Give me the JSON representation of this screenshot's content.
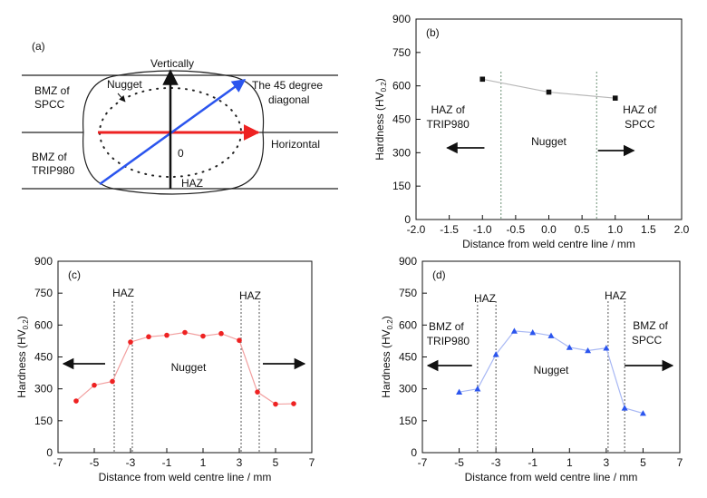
{
  "colors": {
    "red": "#ee2222",
    "blue": "#2b55ee",
    "red_line": "#f2a0a0",
    "blue_line": "#a8b8f4",
    "gray_line": "#b8b8b8",
    "dotted_green": "#6b8f75"
  },
  "schematic": {
    "panel_label": "(a)",
    "vertically": "Vertically",
    "nugget": "Nugget",
    "bmz_spcc_1": "BMZ of",
    "bmz_spcc_2": "SPCC",
    "bmz_trip_1": "BMZ of",
    "bmz_trip_2": "TRIP980",
    "diag_1": "The 45 degree",
    "diag_2": "diagonal",
    "horizontal": "Horizontal",
    "origin": "0",
    "haz": "HAZ"
  },
  "chart_data": [
    {
      "id": "b",
      "type": "scatter",
      "panel_label": "(b)",
      "xlabel": "Distance from weld centre line / mm",
      "ylabel": "Hardness (HV0.2)",
      "xlim": [
        -2.0,
        2.0
      ],
      "ylim": [
        0,
        900
      ],
      "xticks": [
        "-2.0",
        "-1.5",
        "-1.0",
        "-0.5",
        "0.0",
        "0.5",
        "1.0",
        "1.5",
        "2.0"
      ],
      "yticks": [
        "0",
        "150",
        "300",
        "450",
        "600",
        "750",
        "900"
      ],
      "series": [
        {
          "x": [
            -1.0,
            0.0,
            1.0
          ],
          "y": [
            630,
            572,
            545
          ]
        }
      ],
      "boundaries": [
        -0.72,
        0.72
      ],
      "annotations": {
        "left_1": "HAZ of",
        "left_2": "TRIP980",
        "center": "Nugget",
        "right_1": "HAZ of",
        "right_2": "SPCC"
      }
    },
    {
      "id": "c",
      "type": "line",
      "panel_label": "(c)",
      "xlabel": "Distance from weld centre line / mm",
      "ylabel": "Hardness (HV0.2)",
      "xlim": [
        -7,
        7
      ],
      "ylim": [
        0,
        900
      ],
      "xticks": [
        "-7",
        "-5",
        "-3",
        "-1",
        "1",
        "3",
        "5",
        "7"
      ],
      "yticks": [
        "0",
        "150",
        "300",
        "450",
        "600",
        "750",
        "900"
      ],
      "series": [
        {
          "x": [
            -6,
            -5,
            -4,
            -3,
            -2,
            -1,
            0,
            1,
            2,
            3,
            4,
            5,
            6
          ],
          "y": [
            243,
            317,
            335,
            520,
            545,
            552,
            565,
            548,
            560,
            528,
            285,
            228,
            230
          ]
        }
      ],
      "boundaries": [
        -3.9,
        -2.9,
        3.1,
        4.1
      ],
      "annotations": {
        "haz_left": "HAZ",
        "haz_right": "HAZ",
        "center": "Nugget"
      }
    },
    {
      "id": "d",
      "type": "line",
      "panel_label": "(d)",
      "xlabel": "Distance from weld centre line / mm",
      "ylabel": "Hardness (HV0.2)",
      "xlim": [
        -7,
        7
      ],
      "ylim": [
        0,
        900
      ],
      "xticks": [
        "-7",
        "-5",
        "-3",
        "-1",
        "1",
        "3",
        "5",
        "7"
      ],
      "yticks": [
        "0",
        "150",
        "300",
        "450",
        "600",
        "750",
        "900"
      ],
      "series": [
        {
          "x": [
            -5,
            -4,
            -3,
            -2,
            -1,
            0,
            1,
            2,
            3,
            4,
            5
          ],
          "y": [
            285,
            300,
            462,
            572,
            565,
            550,
            495,
            480,
            492,
            210,
            185
          ]
        }
      ],
      "boundaries": [
        -4.0,
        -3.0,
        3.1,
        4.0
      ],
      "annotations": {
        "haz_left": "HAZ",
        "haz_right": "HAZ",
        "center": "Nugget",
        "left_1": "BMZ of",
        "left_2": "TRIP980",
        "right_1": "BMZ of",
        "right_2": "SPCC"
      }
    }
  ]
}
